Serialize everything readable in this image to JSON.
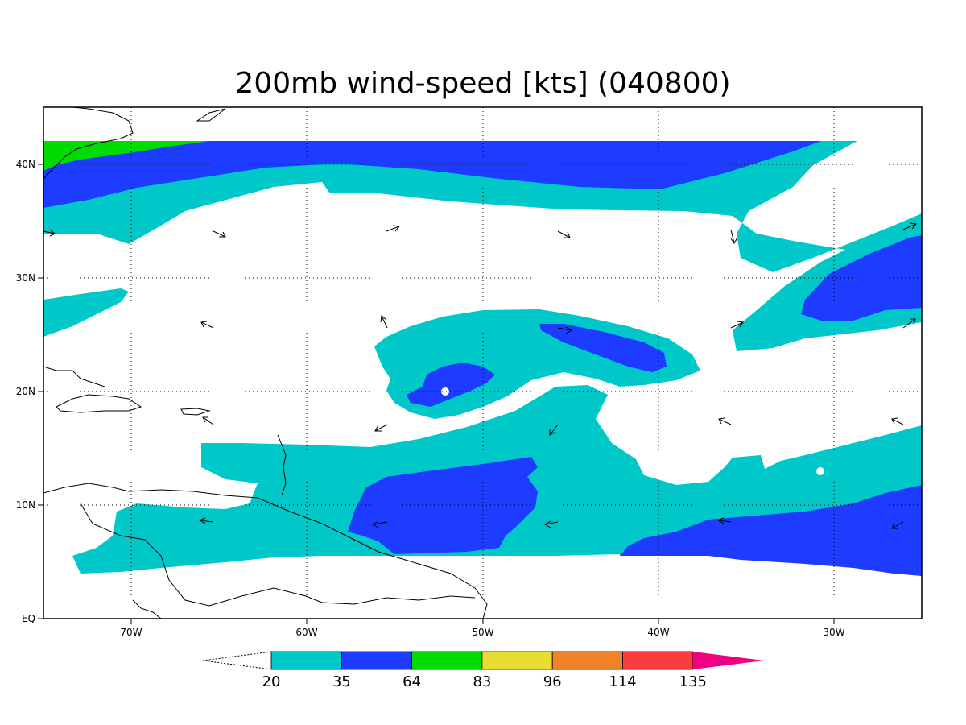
{
  "title": "200mb wind-speed [kts] (040800)",
  "map": {
    "lon_range": [
      -75,
      -25
    ],
    "lat_range": [
      0,
      45
    ],
    "x_ticks": [
      {
        "lon": -70,
        "label": "70W"
      },
      {
        "lon": -60,
        "label": "60W"
      },
      {
        "lon": -50,
        "label": "50W"
      },
      {
        "lon": -40,
        "label": "40W"
      },
      {
        "lon": -30,
        "label": "30W"
      }
    ],
    "y_ticks": [
      {
        "lat": 0,
        "label": "EQ"
      },
      {
        "lat": 10,
        "label": "10N"
      },
      {
        "lat": 20,
        "label": "20N"
      },
      {
        "lat": 30,
        "label": "30N"
      },
      {
        "lat": 40,
        "label": "40N"
      }
    ],
    "grid": "dotted"
  },
  "colorbar": {
    "levels": [
      "20",
      "35",
      "64",
      "83",
      "96",
      "114",
      "135"
    ],
    "colors": [
      "#00c8c8",
      "#1e3cff",
      "#00dc00",
      "#e6dc32",
      "#f08228",
      "#fa3c3c",
      "#f00082"
    ],
    "below_color": "#ffffff"
  }
}
